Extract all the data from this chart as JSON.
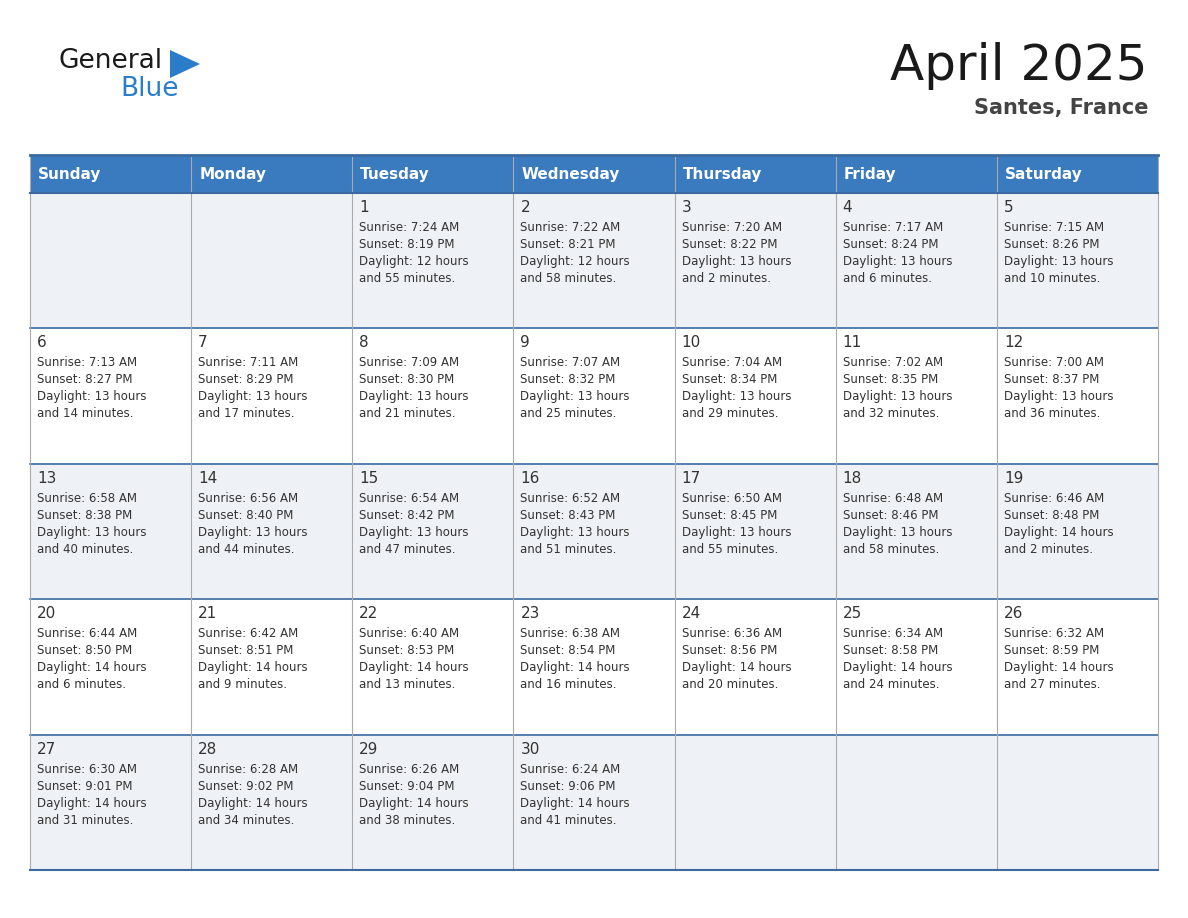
{
  "title": "April 2025",
  "subtitle": "Santes, France",
  "header_color": "#3a7abf",
  "header_text_color": "#ffffff",
  "cell_bg_even": "#eef2f7",
  "cell_bg_odd": "#ffffff",
  "border_color": "#3a6aa0",
  "grid_color": "#aaaaaa",
  "text_color": "#333333",
  "days_of_week": [
    "Sunday",
    "Monday",
    "Tuesday",
    "Wednesday",
    "Thursday",
    "Friday",
    "Saturday"
  ],
  "weeks": [
    [
      {
        "day": "",
        "info": ""
      },
      {
        "day": "",
        "info": ""
      },
      {
        "day": "1",
        "info": "Sunrise: 7:24 AM\nSunset: 8:19 PM\nDaylight: 12 hours\nand 55 minutes."
      },
      {
        "day": "2",
        "info": "Sunrise: 7:22 AM\nSunset: 8:21 PM\nDaylight: 12 hours\nand 58 minutes."
      },
      {
        "day": "3",
        "info": "Sunrise: 7:20 AM\nSunset: 8:22 PM\nDaylight: 13 hours\nand 2 minutes."
      },
      {
        "day": "4",
        "info": "Sunrise: 7:17 AM\nSunset: 8:24 PM\nDaylight: 13 hours\nand 6 minutes."
      },
      {
        "day": "5",
        "info": "Sunrise: 7:15 AM\nSunset: 8:26 PM\nDaylight: 13 hours\nand 10 minutes."
      }
    ],
    [
      {
        "day": "6",
        "info": "Sunrise: 7:13 AM\nSunset: 8:27 PM\nDaylight: 13 hours\nand 14 minutes."
      },
      {
        "day": "7",
        "info": "Sunrise: 7:11 AM\nSunset: 8:29 PM\nDaylight: 13 hours\nand 17 minutes."
      },
      {
        "day": "8",
        "info": "Sunrise: 7:09 AM\nSunset: 8:30 PM\nDaylight: 13 hours\nand 21 minutes."
      },
      {
        "day": "9",
        "info": "Sunrise: 7:07 AM\nSunset: 8:32 PM\nDaylight: 13 hours\nand 25 minutes."
      },
      {
        "day": "10",
        "info": "Sunrise: 7:04 AM\nSunset: 8:34 PM\nDaylight: 13 hours\nand 29 minutes."
      },
      {
        "day": "11",
        "info": "Sunrise: 7:02 AM\nSunset: 8:35 PM\nDaylight: 13 hours\nand 32 minutes."
      },
      {
        "day": "12",
        "info": "Sunrise: 7:00 AM\nSunset: 8:37 PM\nDaylight: 13 hours\nand 36 minutes."
      }
    ],
    [
      {
        "day": "13",
        "info": "Sunrise: 6:58 AM\nSunset: 8:38 PM\nDaylight: 13 hours\nand 40 minutes."
      },
      {
        "day": "14",
        "info": "Sunrise: 6:56 AM\nSunset: 8:40 PM\nDaylight: 13 hours\nand 44 minutes."
      },
      {
        "day": "15",
        "info": "Sunrise: 6:54 AM\nSunset: 8:42 PM\nDaylight: 13 hours\nand 47 minutes."
      },
      {
        "day": "16",
        "info": "Sunrise: 6:52 AM\nSunset: 8:43 PM\nDaylight: 13 hours\nand 51 minutes."
      },
      {
        "day": "17",
        "info": "Sunrise: 6:50 AM\nSunset: 8:45 PM\nDaylight: 13 hours\nand 55 minutes."
      },
      {
        "day": "18",
        "info": "Sunrise: 6:48 AM\nSunset: 8:46 PM\nDaylight: 13 hours\nand 58 minutes."
      },
      {
        "day": "19",
        "info": "Sunrise: 6:46 AM\nSunset: 8:48 PM\nDaylight: 14 hours\nand 2 minutes."
      }
    ],
    [
      {
        "day": "20",
        "info": "Sunrise: 6:44 AM\nSunset: 8:50 PM\nDaylight: 14 hours\nand 6 minutes."
      },
      {
        "day": "21",
        "info": "Sunrise: 6:42 AM\nSunset: 8:51 PM\nDaylight: 14 hours\nand 9 minutes."
      },
      {
        "day": "22",
        "info": "Sunrise: 6:40 AM\nSunset: 8:53 PM\nDaylight: 14 hours\nand 13 minutes."
      },
      {
        "day": "23",
        "info": "Sunrise: 6:38 AM\nSunset: 8:54 PM\nDaylight: 14 hours\nand 16 minutes."
      },
      {
        "day": "24",
        "info": "Sunrise: 6:36 AM\nSunset: 8:56 PM\nDaylight: 14 hours\nand 20 minutes."
      },
      {
        "day": "25",
        "info": "Sunrise: 6:34 AM\nSunset: 8:58 PM\nDaylight: 14 hours\nand 24 minutes."
      },
      {
        "day": "26",
        "info": "Sunrise: 6:32 AM\nSunset: 8:59 PM\nDaylight: 14 hours\nand 27 minutes."
      }
    ],
    [
      {
        "day": "27",
        "info": "Sunrise: 6:30 AM\nSunset: 9:01 PM\nDaylight: 14 hours\nand 31 minutes."
      },
      {
        "day": "28",
        "info": "Sunrise: 6:28 AM\nSunset: 9:02 PM\nDaylight: 14 hours\nand 34 minutes."
      },
      {
        "day": "29",
        "info": "Sunrise: 6:26 AM\nSunset: 9:04 PM\nDaylight: 14 hours\nand 38 minutes."
      },
      {
        "day": "30",
        "info": "Sunrise: 6:24 AM\nSunset: 9:06 PM\nDaylight: 14 hours\nand 41 minutes."
      },
      {
        "day": "",
        "info": ""
      },
      {
        "day": "",
        "info": ""
      },
      {
        "day": "",
        "info": ""
      }
    ]
  ],
  "logo_general_color": "#1a1a1a",
  "logo_blue_color": "#2a7dc9",
  "logo_triangle_color": "#2a7dc9",
  "title_fontsize": 36,
  "subtitle_fontsize": 15,
  "header_fontsize": 11,
  "day_num_fontsize": 11,
  "info_fontsize": 8.5
}
